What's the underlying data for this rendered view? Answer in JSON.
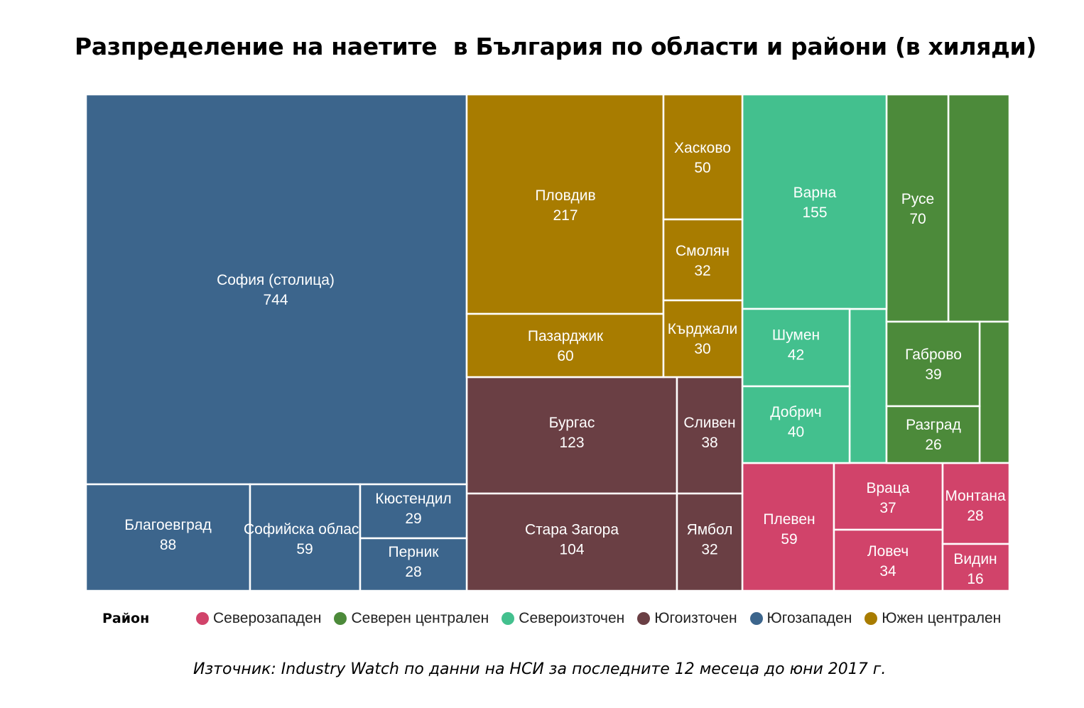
{
  "title": "Разпределение на наетите  в България по области и райони (в хиляди)",
  "source": "Източник: Industry Watch по данни на НСИ за последните 12 месеца до юни 2017 г.",
  "legend_title": "Район",
  "chart_data": {
    "type": "treemap",
    "unit": "хиляди",
    "regions": [
      {
        "name": "Северозападен",
        "color": "#D1436A",
        "children": [
          {
            "name": "Плевен",
            "value": 59
          },
          {
            "name": "Враца",
            "value": 37
          },
          {
            "name": "Ловеч",
            "value": 34
          },
          {
            "name": "Монтана",
            "value": 28
          },
          {
            "name": "Видин",
            "value": 16
          }
        ]
      },
      {
        "name": "Северен централен",
        "color": "#4C8A3A",
        "children": [
          {
            "name": "Русе",
            "value": 70
          },
          {
            "name": "Габрово",
            "value": 39
          },
          {
            "name": "Разград",
            "value": 26
          }
        ]
      },
      {
        "name": "Североизточен",
        "color": "#43C08E",
        "children": [
          {
            "name": "Варна",
            "value": 155
          },
          {
            "name": "Шумен",
            "value": 42
          },
          {
            "name": "Добрич",
            "value": 40
          }
        ]
      },
      {
        "name": "Югоизточен",
        "color": "#6A3F44",
        "children": [
          {
            "name": "Бургас",
            "value": 123
          },
          {
            "name": "Стара Загора",
            "value": 104
          },
          {
            "name": "Сливен",
            "value": 38
          },
          {
            "name": "Ямбол",
            "value": 32
          }
        ]
      },
      {
        "name": "Югозападен",
        "color": "#3C658C",
        "children": [
          {
            "name": "София (столица)",
            "value": 744
          },
          {
            "name": "Благоевград",
            "value": 88
          },
          {
            "name": "Софийска област",
            "value": 59
          },
          {
            "name": "Кюстендил",
            "value": 29
          },
          {
            "name": "Перник",
            "value": 28
          }
        ]
      },
      {
        "name": "Южен централен",
        "color": "#A87C00",
        "children": [
          {
            "name": "Пловдив",
            "value": 217
          },
          {
            "name": "Пазарджик",
            "value": 60
          },
          {
            "name": "Хасково",
            "value": 50
          },
          {
            "name": "Смолян",
            "value": 32
          },
          {
            "name": "Кърджали",
            "value": 30
          }
        ]
      }
    ]
  }
}
